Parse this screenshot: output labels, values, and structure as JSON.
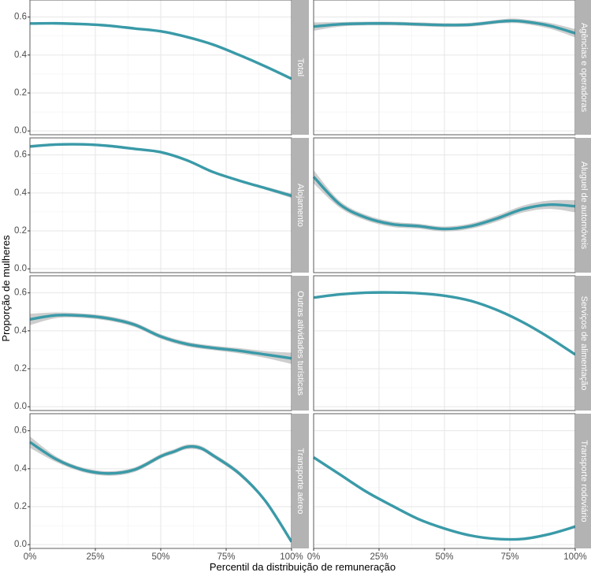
{
  "chart_data": {
    "type": "line",
    "xlabel": "Percentil da distribuição de remuneração",
    "ylabel": "Proporção de mulheres",
    "x_ticks": [
      0,
      25,
      50,
      75,
      100
    ],
    "x_tick_labels": [
      "0%",
      "25%",
      "50%",
      "75%",
      "100%"
    ],
    "y_ticks": [
      0,
      0.2,
      0.4,
      0.6
    ],
    "y_tick_labels": [
      "0.0",
      "0.2",
      "0.4",
      "0.6"
    ],
    "xlim": [
      0,
      100
    ],
    "ylim": [
      -0.02,
      0.69
    ],
    "grid": true,
    "line_color": "#3a9aa8",
    "ribbon_color": "#bdbdbd",
    "strip_color": "#b3b3b3",
    "panels": [
      {
        "label": "Total",
        "x": [
          0,
          10,
          20,
          30,
          40,
          50,
          60,
          70,
          80,
          90,
          100
        ],
        "y": [
          0.566,
          0.567,
          0.563,
          0.555,
          0.54,
          0.525,
          0.495,
          0.455,
          0.4,
          0.34,
          0.275
        ],
        "band": [
          0.004,
          0.004,
          0.004,
          0.004,
          0.004,
          0.004,
          0.004,
          0.004,
          0.004,
          0.004,
          0.006
        ]
      },
      {
        "label": "Agências e operadoras",
        "x": [
          0,
          10,
          20,
          30,
          40,
          50,
          60,
          70,
          75,
          80,
          90,
          100
        ],
        "y": [
          0.55,
          0.562,
          0.566,
          0.566,
          0.562,
          0.558,
          0.56,
          0.575,
          0.58,
          0.577,
          0.555,
          0.515
        ],
        "band": [
          0.022,
          0.012,
          0.01,
          0.01,
          0.01,
          0.01,
          0.01,
          0.01,
          0.012,
          0.012,
          0.015,
          0.022
        ]
      },
      {
        "label": "Alojamento",
        "x": [
          0,
          10,
          20,
          30,
          40,
          50,
          60,
          70,
          80,
          90,
          100
        ],
        "y": [
          0.645,
          0.655,
          0.656,
          0.648,
          0.632,
          0.615,
          0.572,
          0.51,
          0.465,
          0.425,
          0.385
        ],
        "band": [
          0.008,
          0.006,
          0.006,
          0.006,
          0.006,
          0.006,
          0.006,
          0.006,
          0.006,
          0.008,
          0.012
        ]
      },
      {
        "label": "Aluguel de automóveis",
        "x": [
          0,
          10,
          20,
          30,
          40,
          50,
          60,
          70,
          80,
          90,
          100
        ],
        "y": [
          0.485,
          0.34,
          0.27,
          0.235,
          0.225,
          0.21,
          0.225,
          0.265,
          0.315,
          0.338,
          0.33
        ],
        "band": [
          0.035,
          0.018,
          0.015,
          0.014,
          0.013,
          0.013,
          0.014,
          0.016,
          0.018,
          0.022,
          0.032
        ]
      },
      {
        "label": "Outras atividades turísticas",
        "x": [
          0,
          10,
          20,
          30,
          40,
          50,
          60,
          70,
          80,
          90,
          100
        ],
        "y": [
          0.46,
          0.482,
          0.48,
          0.465,
          0.432,
          0.37,
          0.33,
          0.31,
          0.295,
          0.275,
          0.255
        ],
        "band": [
          0.03,
          0.015,
          0.012,
          0.012,
          0.012,
          0.012,
          0.012,
          0.012,
          0.014,
          0.018,
          0.03
        ]
      },
      {
        "label": "Serviços de alimentação",
        "x": [
          0,
          10,
          20,
          30,
          40,
          50,
          60,
          70,
          80,
          90,
          100
        ],
        "y": [
          0.575,
          0.592,
          0.601,
          0.602,
          0.598,
          0.585,
          0.558,
          0.51,
          0.445,
          0.365,
          0.275
        ],
        "band": [
          0.004,
          0.003,
          0.003,
          0.003,
          0.003,
          0.003,
          0.003,
          0.003,
          0.003,
          0.004,
          0.006
        ]
      },
      {
        "label": "Transporte aéreo",
        "x": [
          0,
          10,
          20,
          30,
          40,
          50,
          55,
          60,
          65,
          70,
          80,
          90,
          100
        ],
        "y": [
          0.54,
          0.45,
          0.395,
          0.375,
          0.395,
          0.465,
          0.49,
          0.515,
          0.51,
          0.47,
          0.375,
          0.23,
          0.015
        ],
        "band": [
          0.03,
          0.015,
          0.012,
          0.012,
          0.012,
          0.012,
          0.012,
          0.012,
          0.012,
          0.012,
          0.012,
          0.01,
          0.008
        ]
      },
      {
        "label": "Transporte rodoviário",
        "x": [
          0,
          10,
          20,
          30,
          40,
          50,
          60,
          70,
          80,
          90,
          100
        ],
        "y": [
          0.46,
          0.37,
          0.28,
          0.205,
          0.135,
          0.085,
          0.048,
          0.03,
          0.03,
          0.055,
          0.095
        ],
        "band": [
          0.006,
          0.005,
          0.004,
          0.004,
          0.004,
          0.004,
          0.004,
          0.004,
          0.004,
          0.005,
          0.008
        ]
      }
    ]
  }
}
